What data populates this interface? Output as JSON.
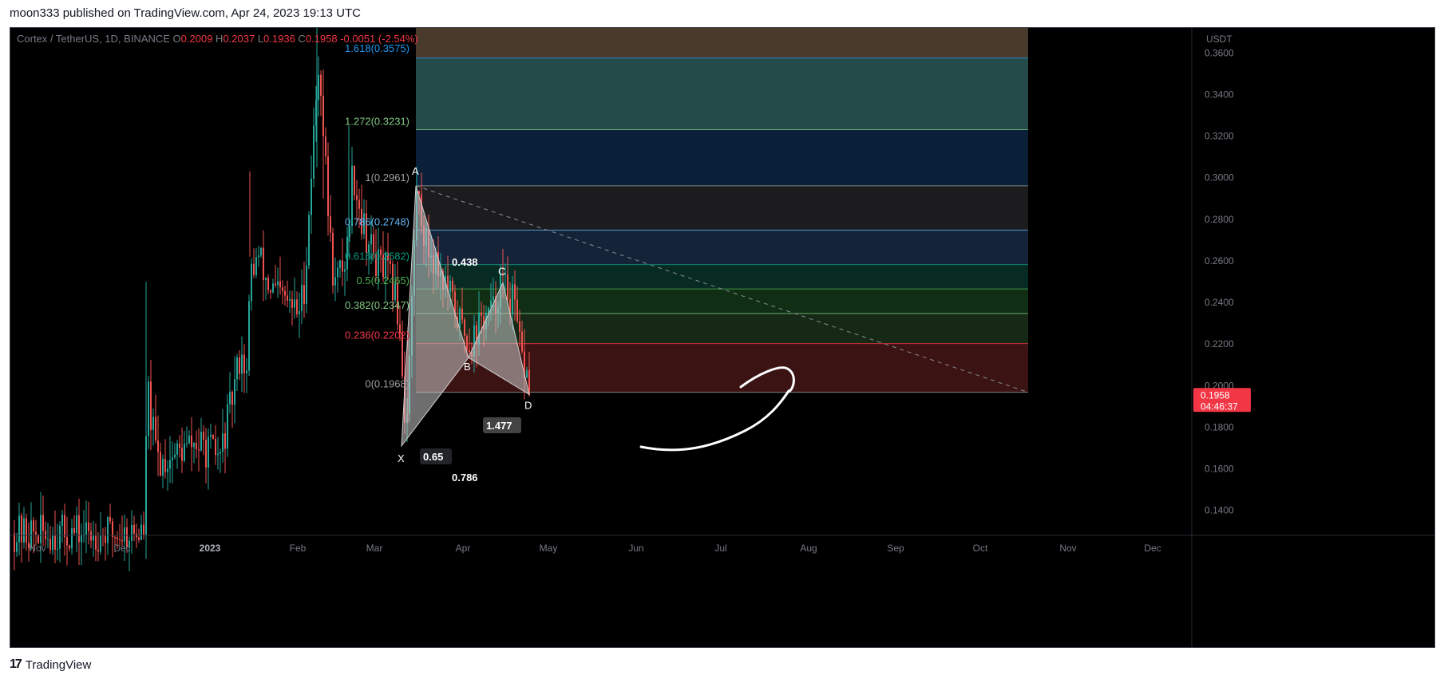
{
  "header": {
    "published": "moon333 published on TradingView.com, Apr 24, 2023 19:13 UTC"
  },
  "footer": {
    "brand": "TradingView"
  },
  "colors": {
    "background": "#000000",
    "up": "#26a69a",
    "down": "#ef5350",
    "price_tag": "#f23645",
    "axis_text": "#787b86"
  },
  "chart_data": {
    "type": "candlestick",
    "symbol": "Cortex / TetherUS, 1D, BINANCE",
    "ohlc": {
      "O": "0.2009",
      "H": "0.2037",
      "L": "0.1936",
      "C": "0.1958",
      "change": "-0.0051 (-2.54%)"
    },
    "y_axis": {
      "unit": "USDT",
      "range": [
        0.128,
        0.372
      ],
      "ticks": [
        "0.3600",
        "0.3400",
        "0.3200",
        "0.3000",
        "0.2800",
        "0.2600",
        "0.2400",
        "0.2200",
        "0.2000",
        "0.1800",
        "0.1600",
        "0.1400"
      ]
    },
    "x_axis": {
      "ticks": [
        "Nov",
        "Dec",
        "2023",
        "Feb",
        "Mar",
        "Apr",
        "May",
        "Jun",
        "Jul",
        "Aug",
        "Sep",
        "Oct",
        "Nov",
        "Dec"
      ]
    },
    "last_price": {
      "value": "0.1958",
      "countdown": "04:46:37"
    },
    "fib_levels": [
      {
        "label": "1.618(0.3575)",
        "price": 0.3575,
        "color": "#2196f3"
      },
      {
        "label": "1.272(0.3231)",
        "price": 0.3231,
        "color": "#81c784"
      },
      {
        "label": "1(0.2961)",
        "price": 0.2961,
        "color": "#9e9e9e"
      },
      {
        "label": "0.786(0.2748)",
        "price": 0.2748,
        "color": "#64b5f6"
      },
      {
        "label": "0.618(0.2582)",
        "price": 0.2582,
        "color": "#089981"
      },
      {
        "label": "0.5(0.2465)",
        "price": 0.2465,
        "color": "#4caf50"
      },
      {
        "label": "0.382(0.2347)",
        "price": 0.2347,
        "color": "#81c784"
      },
      {
        "label": "0.236(0.2202)",
        "price": 0.2202,
        "color": "#f23645"
      },
      {
        "label": "0(0.1968)",
        "price": 0.1968,
        "color": "#9e9e9e"
      }
    ],
    "fib_zones": [
      {
        "from": 0.3575,
        "to": 0.372,
        "color": "#4a3a2c"
      },
      {
        "from": 0.3231,
        "to": 0.3575,
        "color": "#244a4a"
      },
      {
        "from": 0.2961,
        "to": 0.3231,
        "color": "#0a2038"
      },
      {
        "from": 0.2748,
        "to": 0.2961,
        "color": "#1c1c1e"
      },
      {
        "from": 0.2582,
        "to": 0.2748,
        "color": "#142338"
      },
      {
        "from": 0.2465,
        "to": 0.2582,
        "color": "#072a22"
      },
      {
        "from": 0.2347,
        "to": 0.2465,
        "color": "#102e14"
      },
      {
        "from": 0.2202,
        "to": 0.2347,
        "color": "#162816"
      },
      {
        "from": 0.1968,
        "to": 0.2202,
        "color": "#3b1313"
      }
    ],
    "pattern": {
      "points": [
        {
          "label": "X",
          "price": 0.171
        },
        {
          "label": "A",
          "price": 0.2961
        },
        {
          "label": "B",
          "price": 0.2135
        },
        {
          "label": "C",
          "price": 0.2495
        },
        {
          "label": "D",
          "price": 0.1958
        }
      ],
      "ratios": [
        "0.438",
        "0.65",
        "0.786",
        "1.477"
      ]
    }
  }
}
